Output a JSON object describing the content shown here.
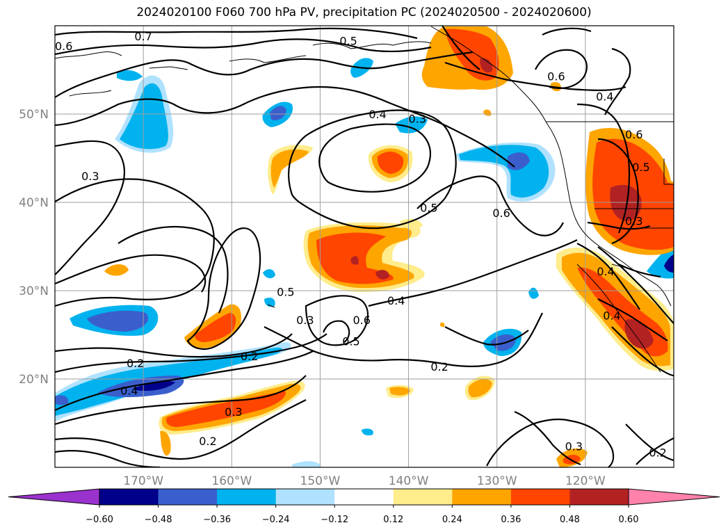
{
  "title": "2024020100 F060 700 hPa PV, precipitation PC (2024020500 - 2024020600)",
  "chart_data": {
    "type": "heatmap",
    "title": "2024020100 F060 700 hPa PV, precipitation PC (2024020500 - 2024020600)",
    "xlabel": "",
    "ylabel": "",
    "lon_range": [
      -180,
      -110
    ],
    "lat_range": [
      10,
      60
    ],
    "x_ticks": [
      {
        "value": -170,
        "label": "170°W"
      },
      {
        "value": -160,
        "label": "160°W"
      },
      {
        "value": -150,
        "label": "150°W"
      },
      {
        "value": -140,
        "label": "140°W"
      },
      {
        "value": -130,
        "label": "130°W"
      },
      {
        "value": -120,
        "label": "120°W"
      }
    ],
    "y_ticks": [
      {
        "value": 20,
        "label": "20°N"
      },
      {
        "value": 30,
        "label": "30°N"
      },
      {
        "value": 40,
        "label": "40°N"
      },
      {
        "value": 50,
        "label": "50°N"
      }
    ],
    "grid": true,
    "colorbar": {
      "boundaries": [
        "−0.60",
        "−0.48",
        "−0.36",
        "−0.24",
        "−0.12",
        "0.12",
        "0.24",
        "0.36",
        "0.48",
        "0.60"
      ],
      "colors": [
        "#9a32cd",
        "#00008b",
        "#3a5fcd",
        "#00b2ee",
        "#b0e2ff",
        "#ffffff",
        "#ffec8b",
        "#ffa500",
        "#ff4500",
        "#b22222",
        "#ff82ab"
      ],
      "extend": "both"
    },
    "contour_labels": [
      {
        "lon": -170,
        "lat": 58.8,
        "text": "0.7"
      },
      {
        "lon": -179,
        "lat": 57.7,
        "text": "0.6"
      },
      {
        "lon": -146.8,
        "lat": 58.3,
        "text": "0.5"
      },
      {
        "lon": -123.3,
        "lat": 54.3,
        "text": "0.6"
      },
      {
        "lon": -117.8,
        "lat": 52.0,
        "text": "0.4"
      },
      {
        "lon": -114.5,
        "lat": 47.7,
        "text": "0.6"
      },
      {
        "lon": -113.7,
        "lat": 44.0,
        "text": "0.5"
      },
      {
        "lon": -114.5,
        "lat": 37.9,
        "text": "0.3"
      },
      {
        "lon": -176,
        "lat": 43.0,
        "text": "0.3"
      },
      {
        "lon": -143.5,
        "lat": 50.0,
        "text": "0.4"
      },
      {
        "lon": -139,
        "lat": 49.5,
        "text": "0.3"
      },
      {
        "lon": -137.7,
        "lat": 39.4,
        "text": "0.5"
      },
      {
        "lon": -129.5,
        "lat": 38.8,
        "text": "0.6"
      },
      {
        "lon": -153.9,
        "lat": 29.9,
        "text": "0.5"
      },
      {
        "lon": -141.4,
        "lat": 28.9,
        "text": "0.4"
      },
      {
        "lon": -145.3,
        "lat": 26.7,
        "text": "0.6"
      },
      {
        "lon": -146.5,
        "lat": 24.3,
        "text": "0.5"
      },
      {
        "lon": -151.7,
        "lat": 26.7,
        "text": "0.3"
      },
      {
        "lon": -117.7,
        "lat": 32.2,
        "text": "0.4"
      },
      {
        "lon": -117,
        "lat": 27.2,
        "text": "0.4"
      },
      {
        "lon": -170.9,
        "lat": 21.8,
        "text": "0.2"
      },
      {
        "lon": -158,
        "lat": 22.6,
        "text": "0.2"
      },
      {
        "lon": -171.6,
        "lat": 18.7,
        "text": "0.4"
      },
      {
        "lon": -159.8,
        "lat": 16.3,
        "text": "0.3"
      },
      {
        "lon": -136.5,
        "lat": 21.4,
        "text": "0.2"
      },
      {
        "lon": -162.7,
        "lat": 13.0,
        "text": "0.2"
      },
      {
        "lon": -121.3,
        "lat": 12.4,
        "text": "0.3"
      },
      {
        "lon": -111.8,
        "lat": 11.7,
        "text": "0.2"
      }
    ]
  }
}
